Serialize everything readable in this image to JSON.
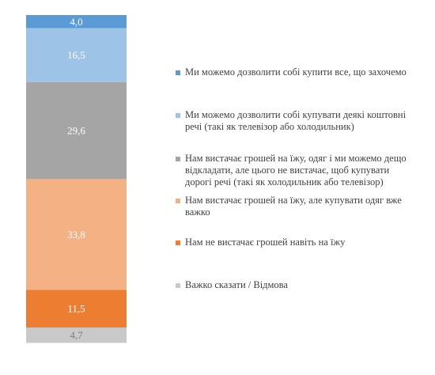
{
  "chart_data": {
    "type": "bar",
    "stacked": true,
    "orientation": "vertical",
    "ylim": [
      0,
      100
    ],
    "segments": [
      {
        "label": "Ми можемо дозволити  собі купити все, що захочемо",
        "value": 4.0,
        "display": "4,0",
        "color": "#5b9bd5",
        "value_color": "#ffffff"
      },
      {
        "label": "Ми можемо дозволити  собі купувати деякі коштовні речі (такі як телевізор  або холодильник)",
        "value": 16.5,
        "display": "16,5",
        "color": "#9dc3e6",
        "value_color": "#ffffff"
      },
      {
        "label": "Нам вистачає грошей на їжу, одяг і ми можемо дещо відкладати,  але цього не вистачає, щоб купувати дорогі речі (такі  як холодильник  або телевізор)",
        "value": 29.6,
        "display": "29,6",
        "color": "#a5a5a5",
        "value_color": "#ffffff"
      },
      {
        "label": "Нам вистачає грошей на їжу, але купувати одяг вже важко",
        "value": 33.8,
        "display": "33,8",
        "color": "#f4b183",
        "value_color": "#ffffff"
      },
      {
        "label": "Нам не вистачає грошей навіть  на їжу",
        "value": 11.5,
        "display": "11,5",
        "color": "#ed7d31",
        "value_color": "#ffffff"
      },
      {
        "label": "Важко  сказати / Відмова",
        "value": 4.7,
        "display": "4,7",
        "color": "#c9c9c9",
        "value_color": "#7f7f7f"
      }
    ]
  }
}
